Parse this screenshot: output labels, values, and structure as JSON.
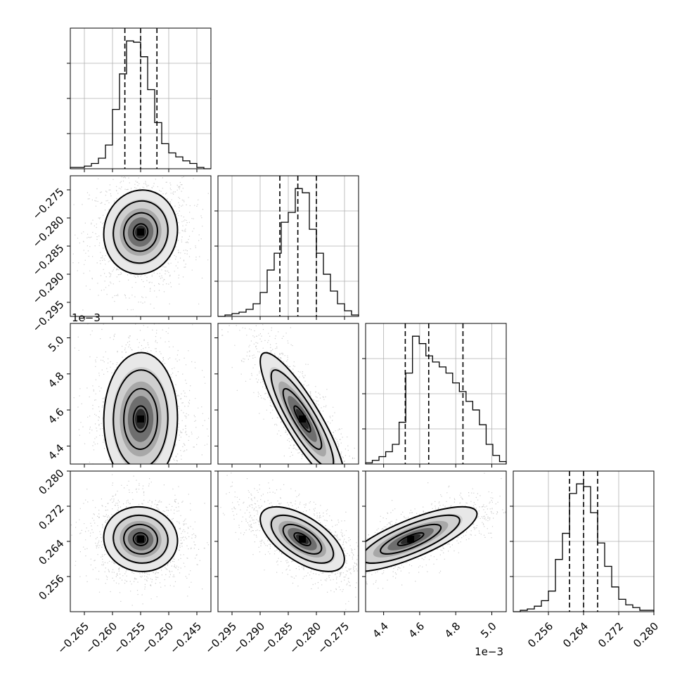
{
  "chart_data": {
    "type": "corner",
    "title": "",
    "grid": true,
    "params": [
      {
        "range": [
          -0.2675,
          -0.2425
        ],
        "quantiles": [
          -0.2578,
          -0.255,
          -0.2521
        ],
        "ticks": [
          "−0.265",
          "−0.260",
          "−0.255",
          "−0.250",
          "−0.245"
        ],
        "tick_values": [
          -0.265,
          -0.26,
          -0.255,
          -0.25,
          -0.245
        ],
        "offset_label": "",
        "hist": [
          1,
          1,
          2,
          4,
          8,
          18,
          45,
          72,
          97,
          96,
          85,
          60,
          35,
          19,
          12,
          9,
          6,
          4,
          1,
          0
        ]
      },
      {
        "range": [
          -0.2975,
          -0.2725
        ],
        "quantiles": [
          -0.2865,
          -0.2833,
          -0.28
        ],
        "ticks": [
          "−0.295",
          "−0.290",
          "−0.285",
          "−0.280",
          "−0.275"
        ],
        "tick_values": [
          -0.295,
          -0.29,
          -0.285,
          -0.28,
          -0.275
        ],
        "offset_label": "",
        "hist": [
          0,
          1,
          2,
          3,
          5,
          9,
          17,
          33,
          45,
          67,
          74,
          91,
          88,
          62,
          45,
          30,
          18,
          9,
          4,
          1
        ]
      },
      {
        "range": [
          4.3,
          5.08
        ],
        "quantiles": [
          4.52,
          4.65,
          4.84
        ],
        "ticks": [
          "4.4",
          "4.6",
          "4.8",
          "5.0"
        ],
        "tick_values": [
          4.4,
          4.6,
          4.8,
          5.0
        ],
        "offset_label": "1e−3",
        "hist": [
          1,
          3,
          6,
          10,
          16,
          34,
          74,
          104,
          98,
          88,
          83,
          79,
          74,
          66,
          59,
          51,
          44,
          32,
          16,
          7,
          2
        ]
      },
      {
        "range": [
          0.248,
          0.28
        ],
        "quantiles": [
          0.2608,
          0.264,
          0.2672
        ],
        "ticks": [
          "0.256",
          "0.264",
          "0.272",
          "0.280"
        ],
        "tick_values": [
          0.256,
          0.264,
          0.272,
          0.28
        ],
        "offset_label": "",
        "hist": [
          0,
          1,
          2,
          4,
          8,
          15,
          38,
          57,
          86,
          93,
          91,
          72,
          50,
          33,
          18,
          9,
          5,
          3,
          1,
          1
        ]
      }
    ],
    "correlations": {
      "1_0": 0.05,
      "2_0": 0.02,
      "2_1": -0.87,
      "3_0": -0.05,
      "3_1": -0.62,
      "3_2": 0.78
    },
    "modes": {
      "0": -0.255,
      "1": -0.2825,
      "2": 4.55,
      "3": 0.2645
    }
  }
}
